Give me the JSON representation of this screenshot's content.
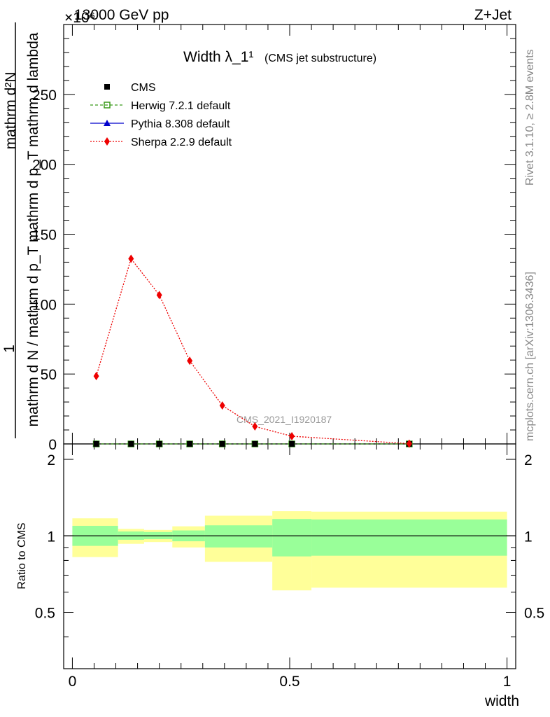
{
  "header": {
    "energy_label": "13000 GeV pp",
    "process_label": "Z+Jet",
    "exponent_label": "×10⁶"
  },
  "side_labels": {
    "rivet": "Rivet 3.1.10, ≥ 2.8M events",
    "mcplots": "mcplots.cern.ch [arXiv:1306.3436]"
  },
  "watermark": "CMS_2021_I1920187",
  "colors": {
    "cms": "#000000",
    "herwig": "#3a9a1a",
    "pythia": "#0000cc",
    "sherpa": "#ee0000",
    "band_inner": "#99ff99",
    "band_outer": "#ffff99"
  },
  "chart_data": [
    {
      "type": "line",
      "title": "Width λ_1¹",
      "title_note": "(CMS jet substructure)",
      "ylabel_one": "1",
      "ylabel_den": "mathrm d N / mathrm d p_T mathrm d p_T mathrm d lambda",
      "ylabel_num": "mathrm d²N",
      "ylim": [
        0,
        300
      ],
      "xlim": [
        -0.02,
        1.02
      ],
      "yticks": [
        0,
        50,
        100,
        150,
        200,
        250
      ],
      "legend_placement": "top-left",
      "x": [
        0.055,
        0.135,
        0.2,
        0.27,
        0.345,
        0.42,
        0.505,
        0.775
      ],
      "series": [
        {
          "name": "CMS",
          "marker": "square",
          "values": [
            0,
            0,
            0,
            0,
            0,
            0,
            0,
            0
          ]
        },
        {
          "name": "Herwig 7.2.1 default",
          "marker": "open-square",
          "values": [
            0,
            0,
            0,
            0,
            0,
            0,
            0,
            0
          ]
        },
        {
          "name": "Pythia 8.308 default",
          "marker": "triangle",
          "values": [
            0,
            0,
            0,
            0,
            0,
            0,
            0,
            0
          ]
        },
        {
          "name": "Sherpa 2.2.9 default",
          "marker": "diamond",
          "values": [
            48.5,
            132.5,
            106.5,
            59.5,
            27.5,
            12.5,
            5.5,
            0.2
          ]
        }
      ]
    },
    {
      "type": "area",
      "ylabel": "Ratio to CMS",
      "xlabel": "width",
      "ylim": [
        0.3,
        2.3
      ],
      "xlim": [
        -0.02,
        1.02
      ],
      "yticks": [
        0.5,
        1,
        2
      ],
      "xticks": [
        0,
        0.5,
        1
      ],
      "xtick_labels": [
        "0",
        "0.5",
        "1"
      ],
      "bins": [
        {
          "x0": 0.0,
          "x1": 0.105,
          "inner": [
            0.913,
            1.095
          ],
          "outer": [
            0.825,
            1.172
          ]
        },
        {
          "x0": 0.105,
          "x1": 0.165,
          "inner": [
            0.965,
            1.04
          ],
          "outer": [
            0.93,
            1.065
          ]
        },
        {
          "x0": 0.165,
          "x1": 0.23,
          "inner": [
            0.97,
            1.035
          ],
          "outer": [
            0.945,
            1.055
          ]
        },
        {
          "x0": 0.23,
          "x1": 0.305,
          "inner": [
            0.952,
            1.05
          ],
          "outer": [
            0.9,
            1.09
          ]
        },
        {
          "x0": 0.305,
          "x1": 0.46,
          "inner": [
            0.9,
            1.1
          ],
          "outer": [
            0.79,
            1.2
          ]
        },
        {
          "x0": 0.46,
          "x1": 0.55,
          "inner": [
            0.83,
            1.165
          ],
          "outer": [
            0.61,
            1.25
          ]
        },
        {
          "x0": 0.55,
          "x1": 1.0,
          "inner": [
            0.835,
            1.16
          ],
          "outer": [
            0.625,
            1.245
          ]
        }
      ]
    }
  ]
}
